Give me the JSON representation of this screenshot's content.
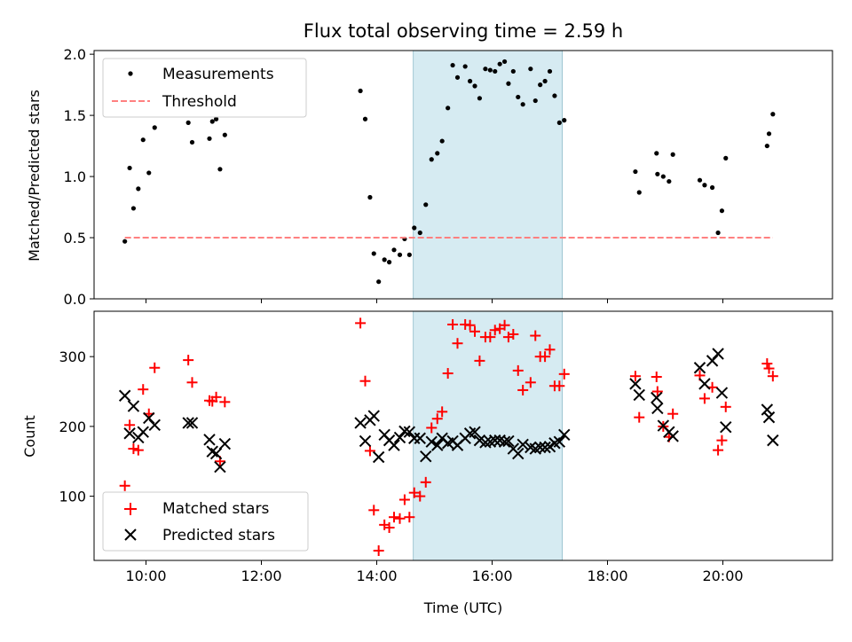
{
  "chart_data": [
    {
      "type": "scatter",
      "title": "Flux total observing time = 2.59 h",
      "xlabel": "",
      "ylabel": "Matched/Predicted stars",
      "xlim": [
        "09:06",
        "21:54"
      ],
      "ylim": [
        0,
        2.03
      ],
      "yticks": [
        0.0,
        0.5,
        1.0,
        1.5,
        2.0
      ],
      "ytick_labels": [
        "0.0",
        "0.5",
        "1.0",
        "1.5",
        "2.0"
      ],
      "grid": false,
      "legend": "top-left",
      "highlight_span": [
        "14:38",
        "17:13"
      ],
      "highlight_color": "#add8e6",
      "series": [
        {
          "name": "Measurements",
          "marker": "dot",
          "color": "#000000",
          "x": [
            "09:38",
            "09:43",
            "09:47",
            "09:52",
            "09:57",
            "10:03",
            "10:09",
            "10:44",
            "10:48",
            "11:06",
            "11:09",
            "11:13",
            "11:17",
            "11:22",
            "13:43",
            "13:48",
            "13:53",
            "13:57",
            "14:02",
            "14:08",
            "14:13",
            "14:18",
            "14:24",
            "14:29",
            "14:34",
            "14:39",
            "14:45",
            "14:51",
            "14:57",
            "15:03",
            "15:08",
            "15:14",
            "15:19",
            "15:24",
            "15:32",
            "15:37",
            "15:42",
            "15:47",
            "15:53",
            "15:58",
            "16:03",
            "16:08",
            "16:13",
            "16:17",
            "16:22",
            "16:27",
            "16:32",
            "16:40",
            "16:45",
            "16:50",
            "16:55",
            "17:00",
            "17:05",
            "17:10",
            "17:15",
            "18:29",
            "18:33",
            "18:51",
            "18:52",
            "18:58",
            "19:04",
            "19:08",
            "19:36",
            "19:41",
            "19:49",
            "19:55",
            "19:59",
            "20:03",
            "20:46",
            "20:48",
            "20:52"
          ],
          "y": [
            0.47,
            1.07,
            0.74,
            0.9,
            1.3,
            1.03,
            1.4,
            1.44,
            1.28,
            1.31,
            1.45,
            1.47,
            1.06,
            1.34,
            1.7,
            1.47,
            0.83,
            0.37,
            0.14,
            0.32,
            0.3,
            0.4,
            0.36,
            0.49,
            0.36,
            0.58,
            0.54,
            0.77,
            1.14,
            1.19,
            1.29,
            1.56,
            1.91,
            1.81,
            1.9,
            1.78,
            1.74,
            1.64,
            1.88,
            1.87,
            1.86,
            1.92,
            1.94,
            1.76,
            1.86,
            1.65,
            1.59,
            1.88,
            1.62,
            1.75,
            1.78,
            1.86,
            1.66,
            1.44,
            1.46,
            1.04,
            0.87,
            1.19,
            1.02,
            1.0,
            0.96,
            1.18,
            0.97,
            0.93,
            0.91,
            0.54,
            0.72,
            1.15,
            1.25,
            1.35,
            1.51
          ]
        },
        {
          "name": "Threshold",
          "style": "dashed",
          "color": "#ff8080",
          "x": [
            "09:38",
            "20:52"
          ],
          "y": [
            0.5,
            0.5
          ]
        }
      ]
    },
    {
      "type": "scatter",
      "title": "",
      "xlabel": "Time (UTC)",
      "ylabel": "Count",
      "xlim": [
        "09:06",
        "21:54"
      ],
      "ylim": [
        8,
        365
      ],
      "xticks": [
        "10:00",
        "12:00",
        "14:00",
        "16:00",
        "18:00",
        "20:00"
      ],
      "yticks": [
        100,
        200,
        300
      ],
      "ytick_labels": [
        "100",
        "200",
        "300"
      ],
      "grid": false,
      "legend": "bottom-left",
      "highlight_span": [
        "14:38",
        "17:13"
      ],
      "highlight_color": "#add8e6",
      "series": [
        {
          "name": "Matched stars",
          "marker": "plus",
          "color": "#ff0000",
          "x": [
            "09:38",
            "09:43",
            "09:47",
            "09:52",
            "09:57",
            "10:03",
            "10:09",
            "10:44",
            "10:48",
            "11:06",
            "11:09",
            "11:13",
            "11:17",
            "11:22",
            "13:43",
            "13:48",
            "13:53",
            "13:57",
            "14:02",
            "14:08",
            "14:13",
            "14:18",
            "14:24",
            "14:29",
            "14:34",
            "14:39",
            "14:45",
            "14:51",
            "14:57",
            "15:03",
            "15:08",
            "15:14",
            "15:19",
            "15:24",
            "15:32",
            "15:37",
            "15:42",
            "15:47",
            "15:53",
            "15:58",
            "16:03",
            "16:08",
            "16:13",
            "16:17",
            "16:22",
            "16:27",
            "16:32",
            "16:40",
            "16:45",
            "16:50",
            "16:55",
            "17:00",
            "17:05",
            "17:10",
            "17:15",
            "18:29",
            "18:33",
            "18:51",
            "18:52",
            "18:58",
            "19:04",
            "19:08",
            "19:36",
            "19:41",
            "19:49",
            "19:55",
            "19:59",
            "20:03",
            "20:46",
            "20:48",
            "20:52"
          ],
          "y": [
            115,
            202,
            168,
            166,
            253,
            218,
            284,
            295,
            263,
            237,
            236,
            242,
            150,
            235,
            348,
            265,
            165,
            80,
            22,
            59,
            55,
            70,
            68,
            95,
            70,
            105,
            100,
            120,
            198,
            211,
            221,
            276,
            346,
            319,
            346,
            345,
            336,
            294,
            328,
            328,
            338,
            340,
            345,
            328,
            332,
            280,
            252,
            263,
            330,
            300,
            300,
            310,
            258,
            258,
            275,
            272,
            213,
            271,
            250,
            200,
            185,
            218,
            273,
            240,
            256,
            166,
            180,
            228,
            290,
            283,
            272
          ]
        },
        {
          "name": "Predicted stars",
          "marker": "x",
          "color": "#000000",
          "x": [
            "09:38",
            "09:43",
            "09:47",
            "09:52",
            "09:57",
            "10:03",
            "10:09",
            "10:44",
            "10:48",
            "11:06",
            "11:09",
            "11:13",
            "11:17",
            "11:22",
            "13:43",
            "13:48",
            "13:53",
            "13:57",
            "14:02",
            "14:08",
            "14:13",
            "14:18",
            "14:24",
            "14:29",
            "14:34",
            "14:39",
            "14:45",
            "14:51",
            "14:57",
            "15:03",
            "15:08",
            "15:14",
            "15:19",
            "15:24",
            "15:32",
            "15:37",
            "15:42",
            "15:47",
            "15:53",
            "15:58",
            "16:03",
            "16:08",
            "16:13",
            "16:17",
            "16:22",
            "16:27",
            "16:32",
            "16:40",
            "16:45",
            "16:50",
            "16:55",
            "17:00",
            "17:05",
            "17:10",
            "17:15",
            "18:29",
            "18:33",
            "18:51",
            "18:52",
            "18:58",
            "19:04",
            "19:08",
            "19:36",
            "19:41",
            "19:49",
            "19:55",
            "19:59",
            "20:03",
            "20:46",
            "20:48",
            "20:52"
          ],
          "y": [
            244,
            190,
            229,
            184,
            192,
            212,
            202,
            205,
            205,
            181,
            164,
            161,
            142,
            175,
            205,
            179,
            209,
            215,
            156,
            188,
            180,
            173,
            184,
            193,
            192,
            183,
            183,
            157,
            178,
            173,
            183,
            176,
            179,
            173,
            183,
            190,
            192,
            180,
            177,
            178,
            180,
            180,
            178,
            179,
            168,
            161,
            174,
            170,
            168,
            170,
            170,
            171,
            176,
            178,
            188,
            261,
            245,
            241,
            226,
            201,
            192,
            186,
            284,
            261,
            294,
            304,
            248,
            199,
            224,
            213,
            180
          ]
        }
      ]
    }
  ]
}
